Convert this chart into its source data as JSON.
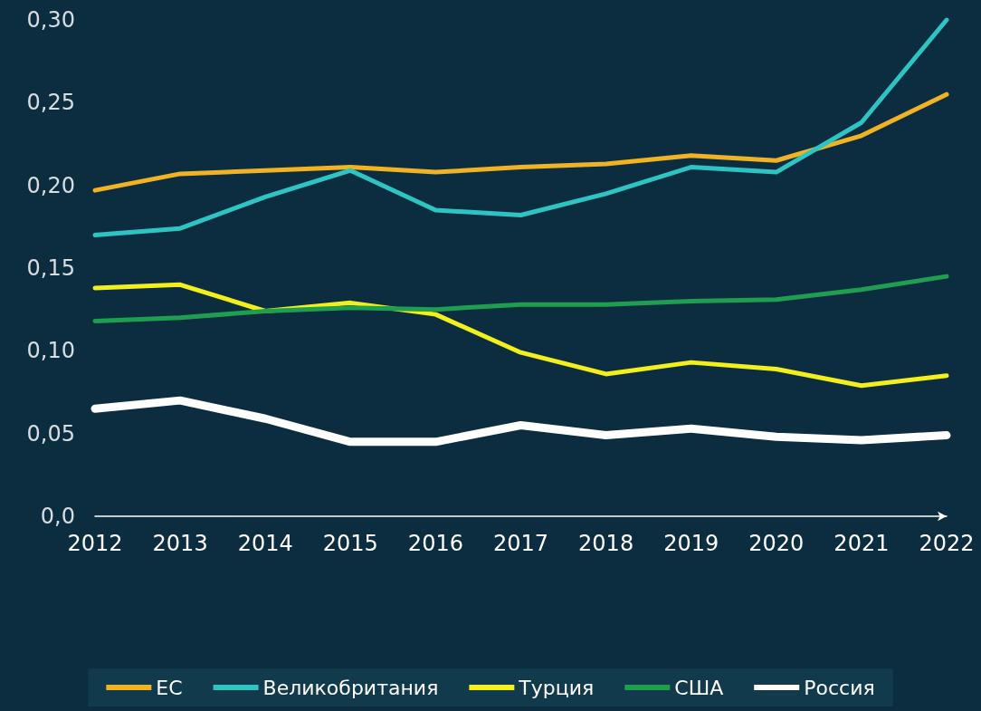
{
  "chart_data": {
    "type": "line",
    "categories": [
      "2012",
      "2013",
      "2014",
      "2015",
      "2016",
      "2017",
      "2018",
      "2019",
      "2020",
      "2021",
      "2022"
    ],
    "series": [
      {
        "name": "ЕС",
        "color": "#f0b323",
        "values": [
          0.197,
          0.207,
          0.209,
          0.211,
          0.208,
          0.211,
          0.213,
          0.218,
          0.215,
          0.23,
          0.255
        ]
      },
      {
        "name": "Великобритания",
        "color": "#2ec4c4",
        "values": [
          0.17,
          0.174,
          0.193,
          0.209,
          0.185,
          0.182,
          0.195,
          0.211,
          0.208,
          0.238,
          0.3
        ]
      },
      {
        "name": "Турция",
        "color": "#f2ef1c",
        "values": [
          0.138,
          0.14,
          0.124,
          0.129,
          0.122,
          0.099,
          0.086,
          0.093,
          0.089,
          0.079,
          0.085
        ]
      },
      {
        "name": "США",
        "color": "#1f9e50",
        "values": [
          0.118,
          0.12,
          0.124,
          0.126,
          0.125,
          0.128,
          0.128,
          0.13,
          0.131,
          0.137,
          0.145
        ]
      },
      {
        "name": "Россия",
        "color": "#ffffff",
        "values": [
          0.065,
          0.07,
          0.059,
          0.045,
          0.045,
          0.055,
          0.049,
          0.053,
          0.048,
          0.046,
          0.049
        ]
      }
    ],
    "ylim": [
      0,
      0.3
    ],
    "yticks": [
      {
        "value": 0,
        "label": "0,0"
      },
      {
        "value": 0.05,
        "label": "0,05"
      },
      {
        "value": 0.1,
        "label": "0,10"
      },
      {
        "value": 0.15,
        "label": "0,15"
      },
      {
        "value": 0.2,
        "label": "0,20"
      },
      {
        "value": 0.25,
        "label": "0,25"
      },
      {
        "value": 0.3,
        "label": "0,30"
      }
    ],
    "grid": false,
    "legend": "bottom",
    "marker": "none",
    "line_style": "solid"
  }
}
